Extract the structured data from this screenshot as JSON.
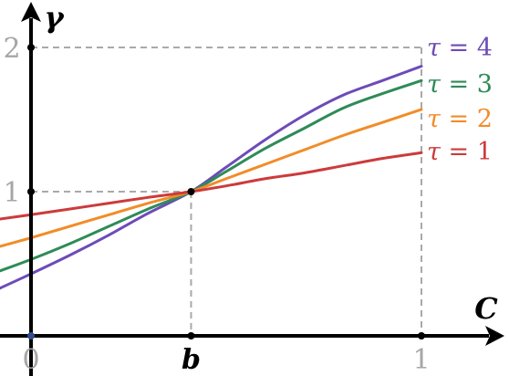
{
  "chart_data": {
    "type": "line",
    "title": "",
    "xlabel": "C",
    "ylabel": "γ",
    "xlim": [
      0,
      1
    ],
    "ylim": [
      0,
      2
    ],
    "grid": false,
    "x_ticks": [
      {
        "value": 0,
        "label": "0"
      },
      {
        "value": 0.41,
        "label": "b"
      },
      {
        "value": 1,
        "label": "1"
      }
    ],
    "y_ticks": [
      {
        "value": 1,
        "label": "1"
      },
      {
        "value": 2,
        "label": "2"
      }
    ],
    "legend_placement": "right",
    "pivot": {
      "x": 0.41,
      "y": 1
    },
    "series": [
      {
        "name": "τ = 4",
        "color": "#6d4bb8",
        "x": [
          -0.08,
          0,
          0.1,
          0.2,
          0.3,
          0.41,
          0.5,
          0.6,
          0.7,
          0.8,
          0.9,
          1
        ],
        "y": [
          0.33,
          0.43,
          0.56,
          0.7,
          0.85,
          1.0,
          1.17,
          1.36,
          1.53,
          1.67,
          1.77,
          1.87
        ]
      },
      {
        "name": "τ = 3",
        "color": "#2e8b57",
        "x": [
          -0.08,
          0,
          0.1,
          0.2,
          0.3,
          0.41,
          0.5,
          0.6,
          0.7,
          0.8,
          0.9,
          1
        ],
        "y": [
          0.45,
          0.53,
          0.64,
          0.76,
          0.88,
          1.0,
          1.14,
          1.3,
          1.44,
          1.58,
          1.68,
          1.77
        ]
      },
      {
        "name": "τ = 2",
        "color": "#f28c28",
        "x": [
          -0.08,
          0,
          0.1,
          0.2,
          0.3,
          0.41,
          0.5,
          0.6,
          0.7,
          0.8,
          0.9,
          1
        ],
        "y": [
          0.62,
          0.68,
          0.76,
          0.84,
          0.92,
          1.0,
          1.09,
          1.19,
          1.29,
          1.39,
          1.48,
          1.57
        ]
      },
      {
        "name": "τ = 1",
        "color": "#cc3b3b",
        "x": [
          -0.08,
          0,
          0.1,
          0.2,
          0.3,
          0.41,
          0.5,
          0.6,
          0.7,
          0.8,
          0.9,
          1
        ],
        "y": [
          0.81,
          0.84,
          0.88,
          0.92,
          0.96,
          1.0,
          1.04,
          1.09,
          1.13,
          1.18,
          1.23,
          1.27
        ]
      }
    ]
  }
}
